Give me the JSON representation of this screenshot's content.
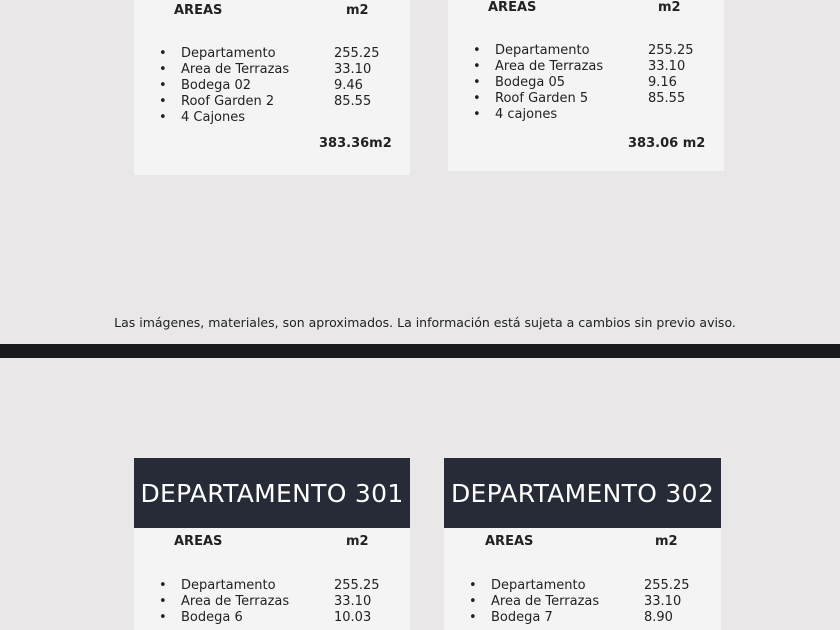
{
  "top_cards": [
    {
      "areas_label": "AREAS",
      "unit_label": "m2",
      "rows": [
        [
          "Departamento",
          "255.25"
        ],
        [
          "Area de Terrazas",
          "33.10"
        ],
        [
          "Bodega 02",
          "9.46"
        ],
        [
          "Roof Garden 2",
          "85.55"
        ],
        [
          "4 Cajones",
          ""
        ]
      ],
      "total": "383.36m2"
    },
    {
      "areas_label": "AREAS",
      "unit_label": "m2",
      "rows": [
        [
          "Departamento",
          "255.25"
        ],
        [
          "Area de Terrazas",
          "33.10"
        ],
        [
          "Bodega 05",
          "9.16"
        ],
        [
          "Roof Garden 5",
          "85.55"
        ],
        [
          "4 cajones",
          ""
        ]
      ],
      "total": "383.06 m2"
    }
  ],
  "notice": "Las imágenes, materiales, son aproximados. La información está sujeta a cambios sin previo aviso.",
  "bottom_cards": [
    {
      "title": "DEPARTAMENTO 301",
      "areas_label": "AREAS",
      "unit_label": "m2",
      "rows": [
        [
          "Departamento",
          "255.25"
        ],
        [
          "Area de Terrazas",
          "33.10"
        ],
        [
          "Bodega 6",
          "10.03"
        ]
      ]
    },
    {
      "title": "DEPARTAMENTO 302",
      "areas_label": "AREAS",
      "unit_label": "m2",
      "rows": [
        [
          "Departamento",
          "255.25"
        ],
        [
          "Area de Terrazas",
          "33.10"
        ],
        [
          "Bodega 7",
          "8.90"
        ]
      ]
    }
  ],
  "bullet": "•"
}
